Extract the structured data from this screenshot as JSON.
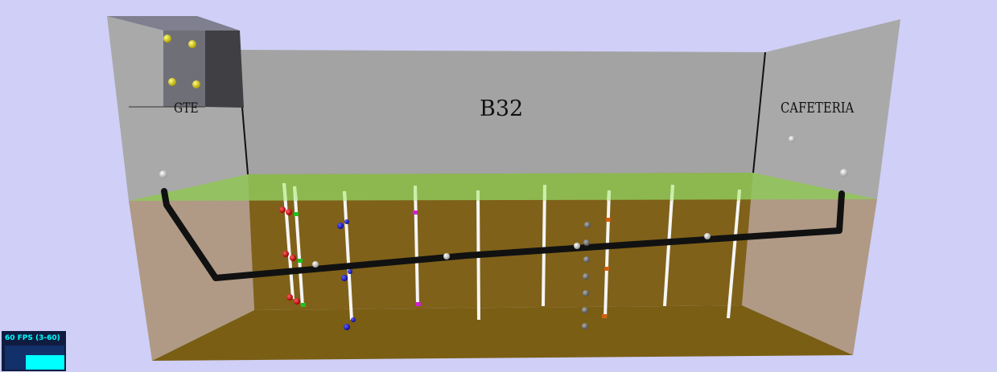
{
  "labels": {
    "main_building": "B32",
    "left_building": "GTE",
    "right_building": "CAFETERIA"
  },
  "stats": {
    "fps_text": "60 FPS (3-60)"
  },
  "colors": {
    "background": "#cfcff7",
    "ground": "#7a5e18",
    "grass": "#8fc85a",
    "walls": "#a0a0a0",
    "pipeline": "#111111",
    "well": "#ffffff",
    "stats_accent": "#00ffff"
  },
  "sensor_groups": [
    {
      "color": "#e01010",
      "role": "red sensors"
    },
    {
      "color": "#1a1ad0",
      "role": "blue sensors"
    },
    {
      "color": "#20c020",
      "role": "green sensors"
    },
    {
      "color": "#d020d0",
      "role": "magenta sensors"
    },
    {
      "color": "#d06010",
      "role": "orange sensors"
    },
    {
      "color": "#707070",
      "role": "grey sensors"
    },
    {
      "color": "#e8e000",
      "role": "yellow sensors"
    }
  ]
}
